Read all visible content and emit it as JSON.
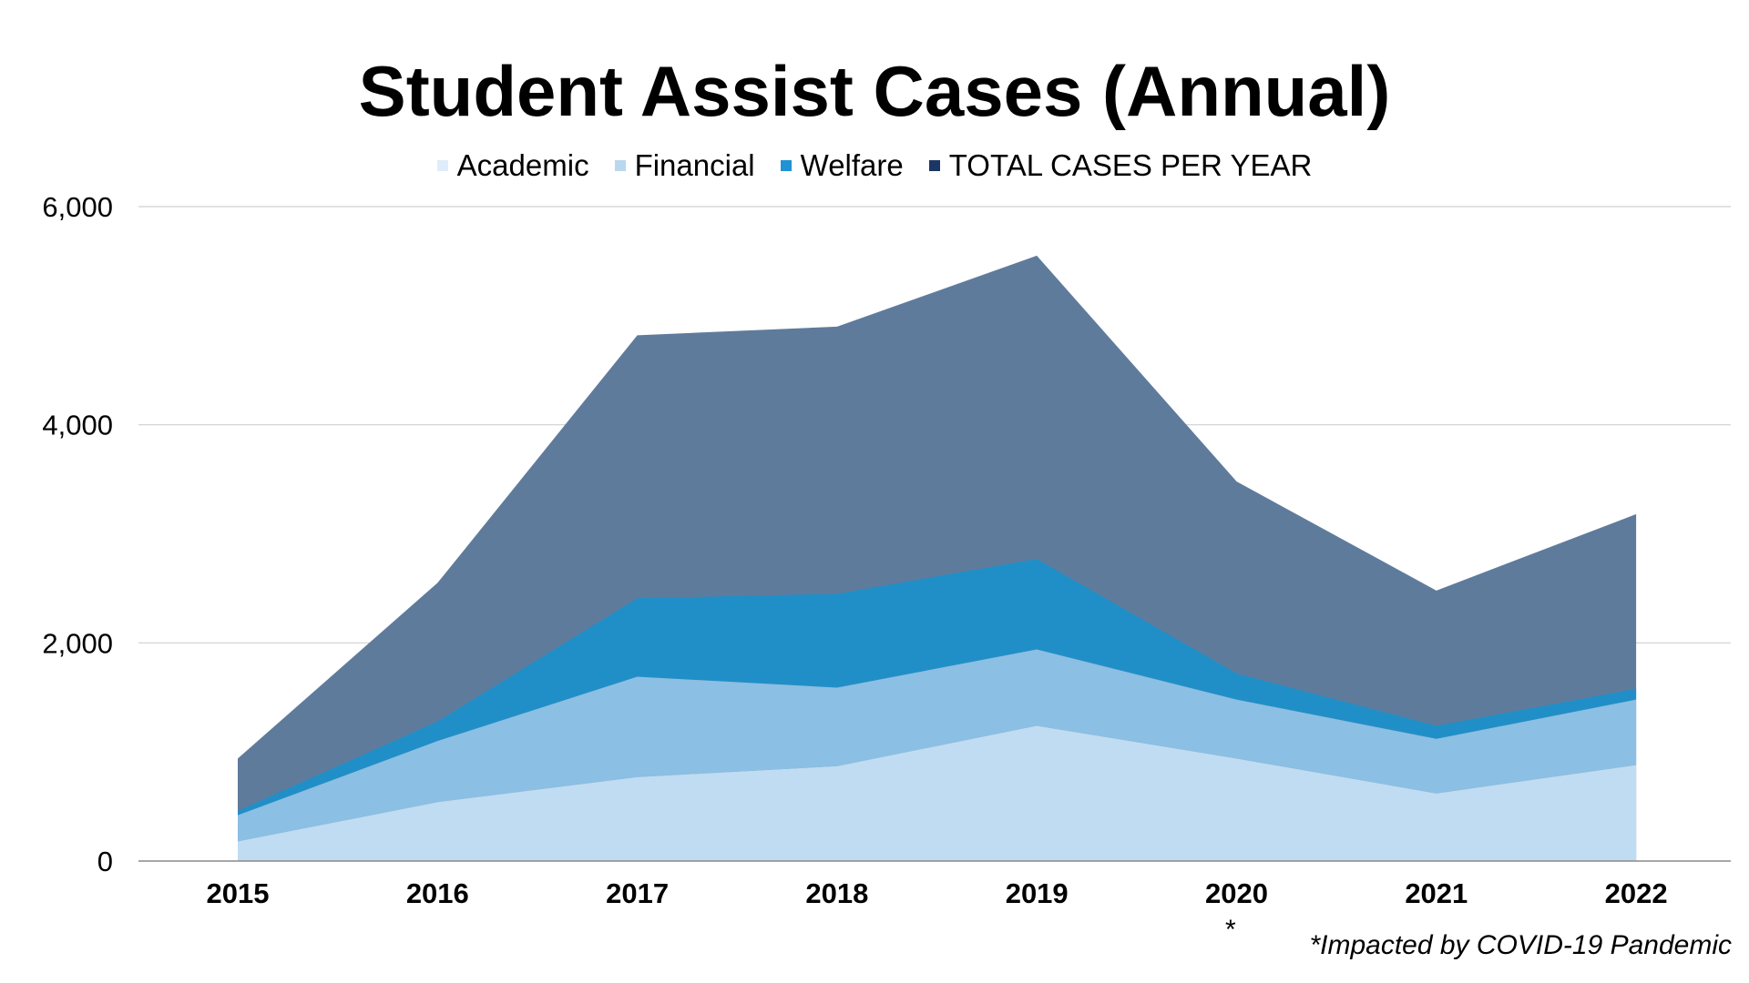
{
  "chart_data": {
    "type": "area",
    "title": "Student Assist Cases (Annual)",
    "xlabel": "",
    "ylabel": "",
    "categories": [
      "2015",
      "2016",
      "2017",
      "2018",
      "2019",
      "2020",
      "2021",
      "2022"
    ],
    "ylim": [
      0,
      6000
    ],
    "yticks": [
      0,
      2000,
      4000,
      6000
    ],
    "ytick_labels": [
      "0",
      "2,000",
      "4,000",
      "6,000"
    ],
    "grid": true,
    "legend_position": "top",
    "series": [
      {
        "name": "Academic",
        "values": [
          180,
          540,
          770,
          870,
          1240,
          940,
          620,
          880
        ],
        "color": "#c0dcf2"
      },
      {
        "name": "Financial",
        "values": [
          240,
          560,
          920,
          720,
          700,
          540,
          500,
          600
        ],
        "color": "#8bbfe3"
      },
      {
        "name": "Welfare",
        "values": [
          40,
          180,
          720,
          860,
          830,
          240,
          120,
          100
        ],
        "color": "#218fc7"
      },
      {
        "name": "TOTAL CASES PER YEAR",
        "values": [
          940,
          2550,
          4820,
          4900,
          5550,
          3480,
          2480,
          3180
        ],
        "color": "#5f7b9c"
      }
    ],
    "stacked_overlap": "TOTAL CASES PER YEAR is drawn from zero behind the stacked series",
    "footnote_marker": "*",
    "footnote": "*Impacted by COVID-19 Pandemic"
  },
  "legend_colors": {
    "Academic": "#deedf9",
    "Financial": "#b9d8ef",
    "Welfare": "#1f93d3",
    "TOTAL CASES PER YEAR": "#1a3766"
  }
}
